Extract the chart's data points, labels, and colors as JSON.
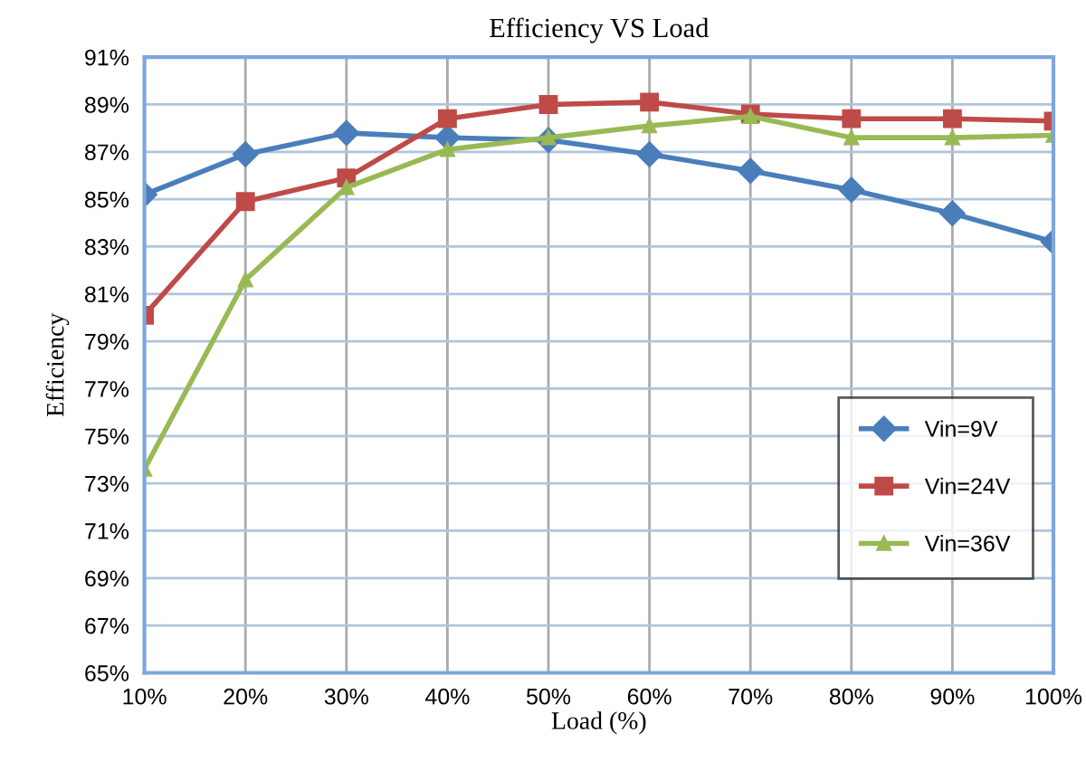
{
  "chart_data": {
    "type": "line",
    "title": "Efficiency VS Load",
    "xlabel": "Load (%)",
    "ylabel": "Efficiency",
    "categories": [
      "10%",
      "20%",
      "30%",
      "40%",
      "50%",
      "60%",
      "70%",
      "80%",
      "90%",
      "100%"
    ],
    "series": [
      {
        "name": "Vin=9V",
        "color": "#4a7ebb",
        "marker": "diamond",
        "values": [
          85.2,
          86.9,
          87.8,
          87.6,
          87.5,
          86.9,
          86.2,
          85.4,
          84.4,
          83.2
        ]
      },
      {
        "name": "Vin=24V",
        "color": "#be4b48",
        "marker": "square",
        "values": [
          80.1,
          84.9,
          85.9,
          88.4,
          89.0,
          89.1,
          88.6,
          88.4,
          88.4,
          88.3
        ]
      },
      {
        "name": "Vin=36V",
        "color": "#98b954",
        "marker": "triangle",
        "values": [
          73.6,
          81.6,
          85.5,
          87.1,
          87.6,
          88.1,
          88.5,
          87.6,
          87.6,
          87.7
        ]
      }
    ],
    "ylim": [
      65,
      91
    ],
    "yticks": [
      {
        "value": 65,
        "label": "65%"
      },
      {
        "value": 67,
        "label": "67%"
      },
      {
        "value": 69,
        "label": "69%"
      },
      {
        "value": 71,
        "label": "71%"
      },
      {
        "value": 73,
        "label": "73%"
      },
      {
        "value": 75,
        "label": "75%"
      },
      {
        "value": 77,
        "label": "77%"
      },
      {
        "value": 79,
        "label": "79%"
      },
      {
        "value": 81,
        "label": "81%"
      },
      {
        "value": 83,
        "label": "83%"
      },
      {
        "value": 85,
        "label": "85%"
      },
      {
        "value": 87,
        "label": "87%"
      },
      {
        "value": 89,
        "label": "89%"
      },
      {
        "value": 91,
        "label": "91%"
      }
    ],
    "grid": true,
    "legend": "right",
    "line_style": "solid"
  }
}
